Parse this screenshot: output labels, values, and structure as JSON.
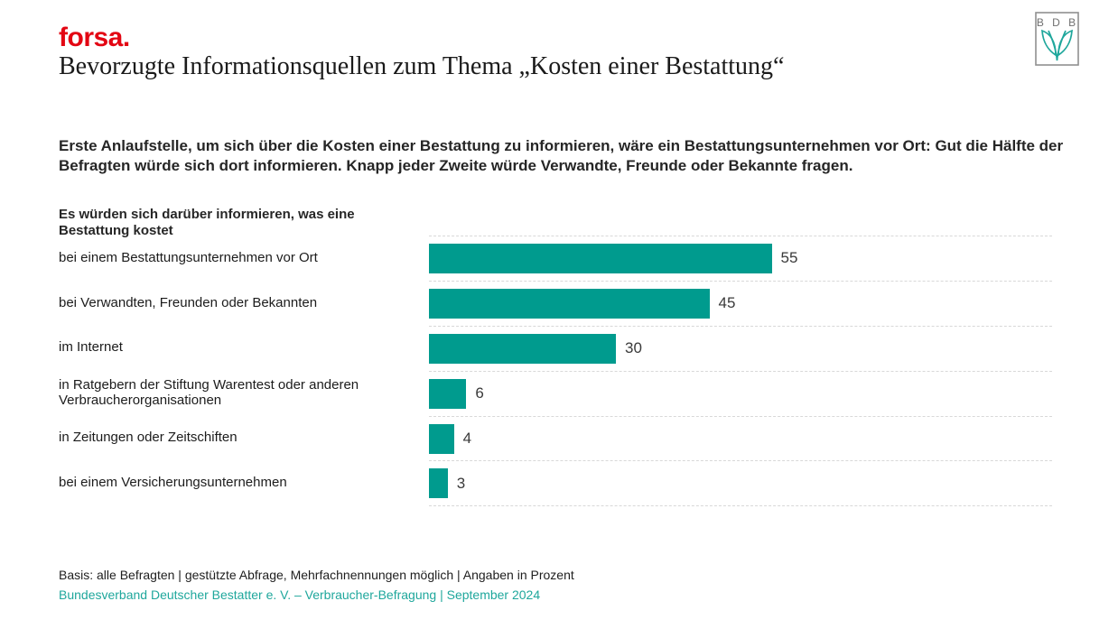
{
  "header": {
    "brand": "forsa.",
    "title": "Bevorzugte Informationsquellen zum Thema „Kosten einer Bestattung“",
    "bdb_letters": "B D B"
  },
  "intro": "Erste Anlaufstelle, um sich über die Kosten einer Bestattung zu informieren, wäre ein Bestattungsunternehmen vor Ort: Gut die Hälfte der Befragten würde sich dort informieren. Knapp jeder Zweite würde Verwandte, Freunde oder Bekannte fragen.",
  "chart_data": {
    "type": "bar",
    "orientation": "horizontal",
    "title": "Es würden sich darüber informieren, was eine Bestattung kostet",
    "categories": [
      "bei einem Bestattungsunternehmen vor Ort",
      "bei Verwandten, Freunden oder Bekannten",
      "im Internet",
      "in Ratgebern der Stiftung Warentest oder anderen Verbraucherorganisationen",
      "in Zeitungen oder Zeitschiften",
      "bei einem Versicherungsunternehmen"
    ],
    "values": [
      55,
      45,
      30,
      6,
      4,
      3
    ],
    "unit": "Prozent",
    "xlim": [
      0,
      100
    ],
    "grid": "dashed horizontal row separators",
    "legend": "none",
    "bar_color": "#009b8e"
  },
  "footer": {
    "basis": "Basis: alle Befragten | gestützte Abfrage, Mehrfachnennungen möglich | Angaben in Prozent",
    "source": "Bundesverband Deutscher Bestatter e. V. – Verbraucher-Befragung | September 2024"
  },
  "colors": {
    "bar_teal": "#009b8e",
    "source_teal": "#1fa79c",
    "forsa_red": "#e30613"
  }
}
